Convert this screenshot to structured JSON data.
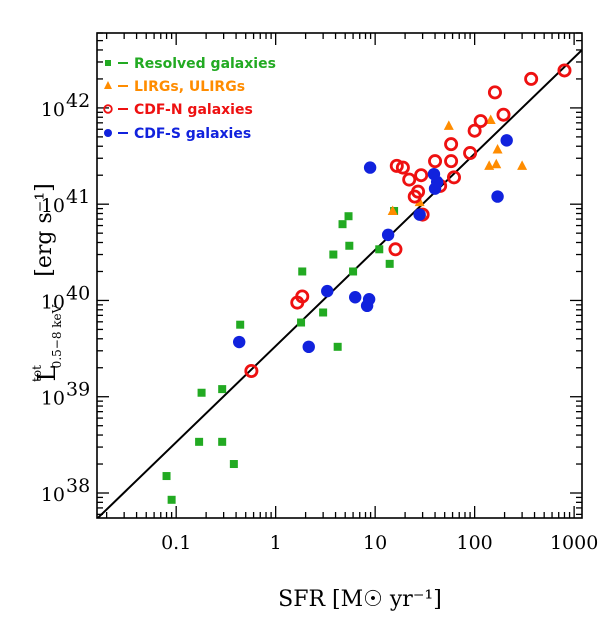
{
  "chart_data": {
    "type": "scatter",
    "title": "",
    "xlabel": "SFR [M☉ yr⁻¹]",
    "ylabel_main": "L",
    "ylabel_sup": "tot",
    "ylabel_sub": "0.5−8 keV",
    "ylabel_units": "[erg s⁻¹]",
    "x_scale": "log",
    "y_scale": "log",
    "xlim": [
      0.016,
      1200
    ],
    "ylim": [
      5.5e+37,
      6e+42
    ],
    "x_ticks": [
      {
        "value": 0.1,
        "label": "0.1"
      },
      {
        "value": 1,
        "label": "1"
      },
      {
        "value": 10,
        "label": "10"
      },
      {
        "value": 100,
        "label": "100"
      },
      {
        "value": 1000,
        "label": "1000"
      }
    ],
    "y_ticks": [
      {
        "value": 1e+38,
        "base": "10",
        "exp": "38"
      },
      {
        "value": 1e+39,
        "base": "10",
        "exp": "39"
      },
      {
        "value": 1e+40,
        "base": "10",
        "exp": "40"
      },
      {
        "value": 1e+41,
        "base": "10",
        "exp": "41"
      },
      {
        "value": 1e+42,
        "base": "10",
        "exp": "42"
      }
    ],
    "fit_line": {
      "x": [
        0.016,
        1200
      ],
      "y": [
        5.4e+37,
        4e+42
      ],
      "color": "#000000"
    },
    "legend": [
      {
        "name": "Resolved galaxies",
        "marker": "square",
        "color": "#22aa22"
      },
      {
        "name": "LIRGs, ULIRGs",
        "marker": "triangle",
        "color": "#ff8c00"
      },
      {
        "name": "CDF-N galaxies",
        "marker": "open-circle",
        "color": "#ee1111"
      },
      {
        "name": "CDF-S galaxies",
        "marker": "filled-circle",
        "color": "#1122dd"
      }
    ],
    "series": [
      {
        "name": "Resolved galaxies",
        "marker": "square",
        "color": "#22aa22",
        "points": [
          {
            "x": 0.08,
            "y": 1.5e+38
          },
          {
            "x": 0.09,
            "y": 8.5e+37
          },
          {
            "x": 0.17,
            "y": 3.4e+38
          },
          {
            "x": 0.18,
            "y": 1.1e+39
          },
          {
            "x": 0.29,
            "y": 3.4e+38
          },
          {
            "x": 0.29,
            "y": 1.2e+39
          },
          {
            "x": 0.38,
            "y": 2e+38
          },
          {
            "x": 0.44,
            "y": 5.6e+39
          },
          {
            "x": 1.8,
            "y": 5.9e+39
          },
          {
            "x": 1.85,
            "y": 2e+40
          },
          {
            "x": 3.0,
            "y": 7.5e+39
          },
          {
            "x": 3.8,
            "y": 3e+40
          },
          {
            "x": 4.2,
            "y": 3.3e+39
          },
          {
            "x": 4.7,
            "y": 6.2e+40
          },
          {
            "x": 5.4,
            "y": 7.5e+40
          },
          {
            "x": 5.5,
            "y": 3.7e+40
          },
          {
            "x": 6.0,
            "y": 2e+40
          },
          {
            "x": 11.0,
            "y": 3.4e+40
          },
          {
            "x": 14.0,
            "y": 2.4e+40
          },
          {
            "x": 15.5,
            "y": 8.5e+40
          }
        ]
      },
      {
        "name": "LIRGs, ULIRGs",
        "marker": "triangle",
        "color": "#ff8c00",
        "points": [
          {
            "x": 15.0,
            "y": 8.5e+40
          },
          {
            "x": 28.0,
            "y": 1.05e+41
          },
          {
            "x": 30.0,
            "y": 7.8e+40
          },
          {
            "x": 55.0,
            "y": 6.5e+41
          },
          {
            "x": 140.0,
            "y": 2.5e+41
          },
          {
            "x": 145.0,
            "y": 7.5e+41
          },
          {
            "x": 165.0,
            "y": 2.6e+41
          },
          {
            "x": 170.0,
            "y": 3.7e+41
          },
          {
            "x": 300.0,
            "y": 2.5e+41
          }
        ]
      },
      {
        "name": "CDF-N galaxies",
        "marker": "open-circle",
        "color": "#ee1111",
        "points": [
          {
            "x": 0.57,
            "y": 1.85e+39
          },
          {
            "x": 1.65,
            "y": 9.5e+39
          },
          {
            "x": 1.85,
            "y": 1.1e+40
          },
          {
            "x": 16.0,
            "y": 3.4e+40
          },
          {
            "x": 16.5,
            "y": 2.5e+41
          },
          {
            "x": 19.0,
            "y": 2.4e+41
          },
          {
            "x": 22.0,
            "y": 1.8e+41
          },
          {
            "x": 25.0,
            "y": 1.2e+41
          },
          {
            "x": 27.0,
            "y": 1.35e+41
          },
          {
            "x": 29.0,
            "y": 2e+41
          },
          {
            "x": 30.0,
            "y": 7.8e+40
          },
          {
            "x": 40.0,
            "y": 2.8e+41
          },
          {
            "x": 45.0,
            "y": 1.55e+41
          },
          {
            "x": 58.0,
            "y": 4.2e+41
          },
          {
            "x": 58.0,
            "y": 2.8e+41
          },
          {
            "x": 62.0,
            "y": 1.9e+41
          },
          {
            "x": 90.0,
            "y": 3.4e+41
          },
          {
            "x": 100.0,
            "y": 5.8e+41
          },
          {
            "x": 115.0,
            "y": 7.3e+41
          },
          {
            "x": 160.0,
            "y": 1.45e+42
          },
          {
            "x": 195.0,
            "y": 8.5e+41
          },
          {
            "x": 370.0,
            "y": 2e+42
          },
          {
            "x": 800.0,
            "y": 2.45e+42
          }
        ]
      },
      {
        "name": "CDF-S galaxies",
        "marker": "filled-circle",
        "color": "#1122dd",
        "points": [
          {
            "x": 0.43,
            "y": 3.7e+39
          },
          {
            "x": 2.15,
            "y": 3.3e+39
          },
          {
            "x": 3.3,
            "y": 1.25e+40
          },
          {
            "x": 6.3,
            "y": 1.08e+40
          },
          {
            "x": 8.3,
            "y": 8.8e+39
          },
          {
            "x": 8.7,
            "y": 1.03e+40
          },
          {
            "x": 8.9,
            "y": 2.4e+41
          },
          {
            "x": 13.5,
            "y": 4.8e+40
          },
          {
            "x": 28.0,
            "y": 7.8e+40
          },
          {
            "x": 39.0,
            "y": 2.05e+41
          },
          {
            "x": 40.0,
            "y": 1.45e+41
          },
          {
            "x": 42.0,
            "y": 1.7e+41
          },
          {
            "x": 170.0,
            "y": 1.2e+41
          },
          {
            "x": 210.0,
            "y": 4.6e+41
          }
        ]
      }
    ]
  }
}
